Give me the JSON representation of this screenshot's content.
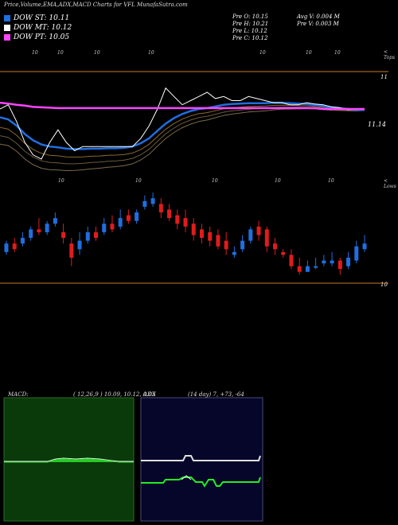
{
  "title": "Price,Volume,EMA,ADX,MACD Charts for VFL  MunafaSutra.com",
  "legend": [
    {
      "label": "DOW ST: 10.11",
      "color": "#1f6fe0"
    },
    {
      "label": "DOW MT: 10.12",
      "color": "#ffffff"
    },
    {
      "label": "DOW PT: 10.05",
      "color": "#ff44ff"
    }
  ],
  "ohlc": {
    "open": "Pre  O: 10.15",
    "high": "Pre  H: 10.21",
    "low": "Pre  L: 10.12",
    "close": "Pre  C: 10.12",
    "avg_vol": "Avg V: 0.004  M",
    "prev_vol": "Pre  V: 0.003 M"
  },
  "labels": {
    "tops": "< Tops",
    "lows": "< Lows",
    "ten": "10",
    "ema_level_top": "11",
    "ema_level_right": "11.14",
    "price_level": "10"
  },
  "macd": {
    "name": "MACD:",
    "params": "( 12,26,9 ) 10.09,  10.12,  0.03"
  },
  "adx": {
    "name": "ADX",
    "params": "(14  day) 7,  +73,  -64"
  },
  "chart_data": {
    "type": "candlestick",
    "candles": [
      {
        "o": 10.1,
        "c": 10.4,
        "h": 10.5,
        "l": 10.0
      },
      {
        "o": 10.4,
        "c": 10.2,
        "h": 10.6,
        "l": 10.1
      },
      {
        "o": 10.4,
        "c": 10.6,
        "h": 10.8,
        "l": 10.3
      },
      {
        "o": 10.6,
        "c": 10.9,
        "h": 11.0,
        "l": 10.5
      },
      {
        "o": 10.9,
        "c": 10.8,
        "h": 11.3,
        "l": 10.7
      },
      {
        "o": 10.8,
        "c": 11.1,
        "h": 11.2,
        "l": 10.7
      },
      {
        "o": 11.1,
        "c": 11.3,
        "h": 11.5,
        "l": 11.0
      },
      {
        "o": 10.8,
        "c": 10.6,
        "h": 11.1,
        "l": 10.4
      },
      {
        "o": 10.4,
        "c": 9.9,
        "h": 10.6,
        "l": 9.6
      },
      {
        "o": 10.2,
        "c": 10.5,
        "h": 10.8,
        "l": 10.0
      },
      {
        "o": 10.5,
        "c": 10.8,
        "h": 11.0,
        "l": 10.4
      },
      {
        "o": 10.8,
        "c": 10.6,
        "h": 11.0,
        "l": 10.5
      },
      {
        "o": 10.8,
        "c": 11.1,
        "h": 11.3,
        "l": 10.7
      },
      {
        "o": 11.1,
        "c": 10.9,
        "h": 11.4,
        "l": 10.8
      },
      {
        "o": 11.0,
        "c": 11.3,
        "h": 11.6,
        "l": 10.9
      },
      {
        "o": 11.4,
        "c": 11.2,
        "h": 11.6,
        "l": 11.1
      },
      {
        "o": 11.2,
        "c": 11.5,
        "h": 11.6,
        "l": 11.1
      },
      {
        "o": 11.7,
        "c": 11.9,
        "h": 12.1,
        "l": 11.6
      },
      {
        "o": 11.8,
        "c": 12.0,
        "h": 12.2,
        "l": 11.7
      },
      {
        "o": 11.8,
        "c": 11.5,
        "h": 12.0,
        "l": 11.3
      },
      {
        "o": 11.6,
        "c": 11.3,
        "h": 11.8,
        "l": 11.2
      },
      {
        "o": 11.4,
        "c": 11.1,
        "h": 11.6,
        "l": 10.9
      },
      {
        "o": 11.3,
        "c": 11.0,
        "h": 11.6,
        "l": 10.8
      },
      {
        "o": 11.1,
        "c": 10.7,
        "h": 11.3,
        "l": 10.5
      },
      {
        "o": 10.9,
        "c": 10.6,
        "h": 11.1,
        "l": 10.4
      },
      {
        "o": 10.8,
        "c": 10.5,
        "h": 11.0,
        "l": 10.3
      },
      {
        "o": 10.7,
        "c": 10.3,
        "h": 10.9,
        "l": 10.2
      },
      {
        "o": 10.5,
        "c": 10.2,
        "h": 10.8,
        "l": 10.0
      },
      {
        "o": 10.0,
        "c": 10.1,
        "h": 10.3,
        "l": 9.9
      },
      {
        "o": 10.2,
        "c": 10.5,
        "h": 10.7,
        "l": 10.1
      },
      {
        "o": 10.5,
        "c": 10.9,
        "h": 11.0,
        "l": 10.4
      },
      {
        "o": 11.0,
        "c": 10.7,
        "h": 11.2,
        "l": 10.5
      },
      {
        "o": 10.9,
        "c": 10.3,
        "h": 11.0,
        "l": 10.1
      },
      {
        "o": 10.4,
        "c": 10.2,
        "h": 10.6,
        "l": 10.0
      },
      {
        "o": 10.1,
        "c": 10.0,
        "h": 10.2,
        "l": 9.9
      },
      {
        "o": 10.0,
        "c": 9.6,
        "h": 10.2,
        "l": 9.5
      },
      {
        "o": 9.6,
        "c": 9.4,
        "h": 9.9,
        "l": 9.3
      },
      {
        "o": 9.4,
        "c": 9.6,
        "h": 9.8,
        "l": 9.4
      },
      {
        "o": 9.6,
        "c": 9.6,
        "h": 9.9,
        "l": 9.5
      },
      {
        "o": 9.7,
        "c": 9.8,
        "h": 10.0,
        "l": 9.6
      },
      {
        "o": 9.7,
        "c": 9.8,
        "h": 10.1,
        "l": 9.6
      },
      {
        "o": 9.8,
        "c": 9.5,
        "h": 9.9,
        "l": 9.3
      },
      {
        "o": 9.6,
        "c": 9.9,
        "h": 10.1,
        "l": 9.5
      },
      {
        "o": 9.8,
        "c": 10.3,
        "h": 10.5,
        "l": 9.7
      },
      {
        "o": 10.2,
        "c": 10.4,
        "h": 10.7,
        "l": 10.1
      }
    ],
    "ylim": [
      9.0,
      12.4
    ],
    "price_level": 9.4,
    "ema_series": [
      {
        "name": "DOW ST",
        "color": "#1f6fe0",
        "values": [
          11.6,
          11.55,
          11.4,
          11.2,
          11.05,
          10.95,
          10.9,
          10.88,
          10.85,
          10.84,
          10.84,
          10.85,
          10.85,
          10.86,
          10.86,
          10.87,
          10.9,
          10.98,
          11.1,
          11.28,
          11.45,
          11.58,
          11.68,
          11.75,
          11.8,
          11.82,
          11.86,
          11.9,
          11.92,
          11.93,
          11.94,
          11.94,
          11.94,
          11.95,
          11.95,
          11.94,
          11.93,
          11.92,
          11.9,
          11.87,
          11.84,
          11.82,
          11.8,
          11.78,
          11.78
        ]
      },
      {
        "name": "DOW MT",
        "color": "#ffffff",
        "values": [
          11.8,
          11.9,
          11.5,
          11.0,
          10.7,
          10.6,
          11.0,
          11.3,
          11.0,
          10.8,
          10.9,
          10.9,
          10.9,
          10.9,
          10.9,
          10.9,
          10.9,
          11.1,
          11.4,
          11.8,
          12.3,
          12.1,
          11.9,
          12.0,
          12.1,
          12.2,
          12.05,
          12.1,
          12.0,
          12.0,
          12.1,
          12.05,
          12.0,
          11.95,
          11.95,
          11.9,
          11.9,
          11.95,
          11.92,
          11.9,
          11.85,
          11.83,
          11.78,
          11.8,
          11.8
        ]
      },
      {
        "name": "DOW PT",
        "color": "#ff44ff",
        "values": [
          11.95,
          11.93,
          11.9,
          11.88,
          11.85,
          11.84,
          11.83,
          11.82,
          11.82,
          11.82,
          11.82,
          11.82,
          11.82,
          11.82,
          11.82,
          11.82,
          11.82,
          11.82,
          11.82,
          11.82,
          11.82,
          11.82,
          11.82,
          11.82,
          11.82,
          11.82,
          11.82,
          11.82,
          11.82,
          11.82,
          11.82,
          11.82,
          11.82,
          11.82,
          11.82,
          11.82,
          11.82,
          11.82,
          11.82,
          11.8,
          11.8,
          11.8,
          11.8,
          11.8,
          11.8
        ]
      }
    ],
    "ema_ylim": [
      10.6,
      12.6
    ]
  }
}
